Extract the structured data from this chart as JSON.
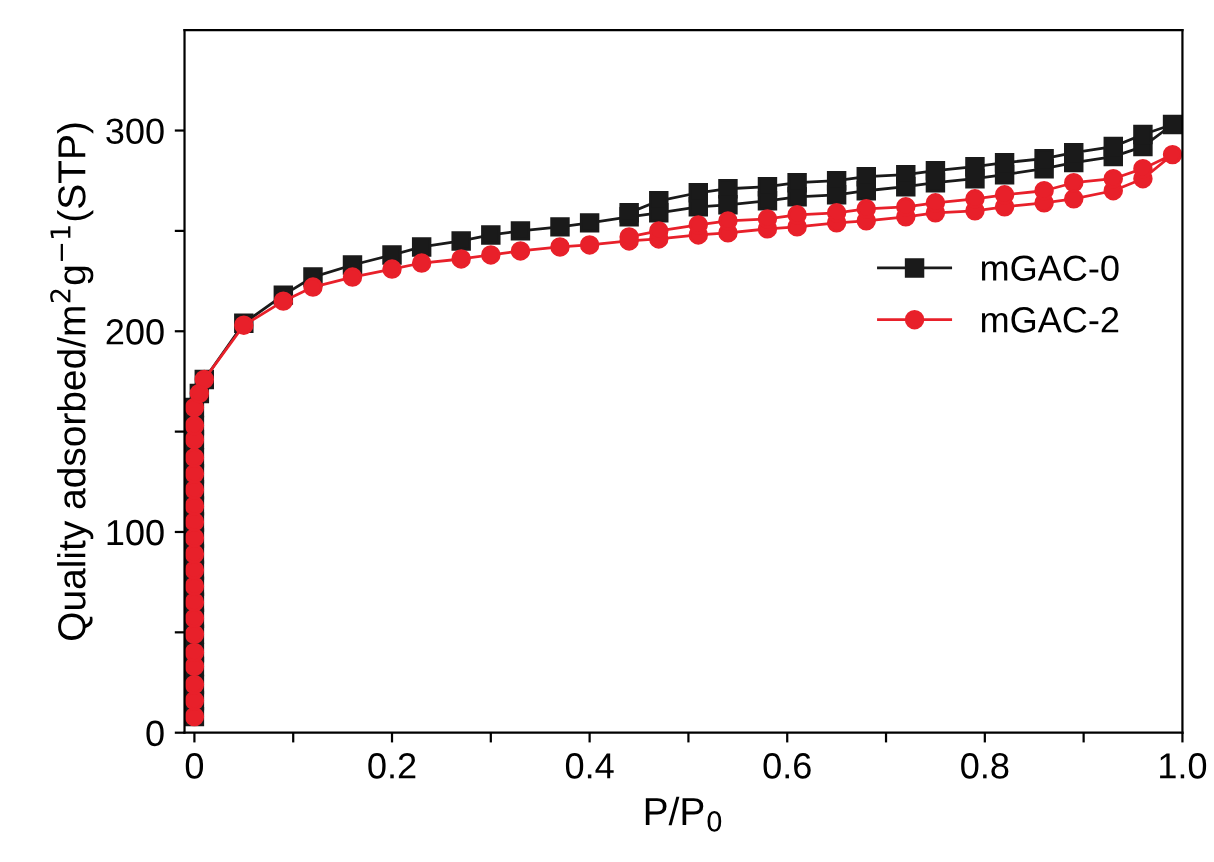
{
  "chart_data": {
    "type": "line",
    "xlabel": "P/P$_{0}$",
    "ylabel": "Quality adsorbed/m$^{2}$g$^{−1}$(STP)",
    "xlim": [
      -0.01,
      1.0
    ],
    "ylim": [
      0,
      350
    ],
    "xticks": [
      0,
      {
        "value": 0.1,
        "label": null
      },
      0.2,
      {
        "value": 0.3,
        "label": null
      },
      0.4,
      {
        "value": 0.5,
        "label": null
      },
      0.6,
      {
        "value": 0.7,
        "label": null
      },
      0.8,
      {
        "value": 0.9,
        "label": null
      },
      {
        "value": 1,
        "label": "1.0"
      }
    ],
    "yticks": [
      0,
      {
        "value": 50,
        "label": null
      },
      100,
      {
        "value": 150,
        "label": null
      },
      200,
      {
        "value": 250,
        "label": null
      },
      300
    ],
    "grid": false,
    "legend": "right",
    "line_style": "solid",
    "series": [
      {
        "name": "mGAC-0",
        "color": "#1a1a1a",
        "marker": "square",
        "x": [
          0,
          0,
          0,
          0,
          0,
          0,
          0,
          0,
          0,
          0,
          0,
          0,
          0,
          0,
          0,
          0,
          0,
          0,
          0,
          0,
          0.005,
          0.01,
          0.05,
          0.09,
          0.12,
          0.16,
          0.2,
          0.23,
          0.27,
          0.3,
          0.33,
          0.37,
          0.4,
          0.44,
          0.47,
          0.51,
          0.54,
          0.58,
          0.61,
          0.65,
          0.68,
          0.72,
          0.75,
          0.79,
          0.82,
          0.86,
          0.89,
          0.93,
          0.96,
          0.99,
          0.96,
          0.93,
          0.89,
          0.86,
          0.82,
          0.79,
          0.75,
          0.72,
          0.68,
          0.65,
          0.61,
          0.58,
          0.54,
          0.51,
          0.47,
          0.44
        ],
        "values": [
          8,
          16,
          24,
          33,
          40,
          49,
          57,
          65,
          73,
          81,
          89,
          97,
          105,
          113,
          121,
          129,
          137,
          146,
          153,
          162,
          169,
          176,
          204,
          218,
          227,
          233,
          238,
          242,
          245,
          248,
          250,
          252,
          254,
          257,
          259,
          262,
          263,
          265,
          267,
          268,
          270,
          272,
          274,
          276,
          278,
          281,
          284,
          287,
          292,
          303,
          298,
          292,
          289,
          286,
          284,
          282,
          280,
          278,
          277,
          275,
          274,
          272,
          271,
          269,
          265,
          259
        ]
      },
      {
        "name": "mGAC-2",
        "color": "#e8202a",
        "marker": "circle",
        "x": [
          0,
          0,
          0,
          0,
          0,
          0,
          0,
          0,
          0,
          0,
          0,
          0,
          0,
          0,
          0,
          0,
          0,
          0,
          0,
          0,
          0.005,
          0.01,
          0.05,
          0.09,
          0.12,
          0.16,
          0.2,
          0.23,
          0.27,
          0.3,
          0.33,
          0.37,
          0.4,
          0.44,
          0.47,
          0.51,
          0.54,
          0.58,
          0.61,
          0.65,
          0.68,
          0.72,
          0.75,
          0.79,
          0.82,
          0.86,
          0.89,
          0.93,
          0.96,
          0.99,
          0.96,
          0.93,
          0.89,
          0.86,
          0.82,
          0.79,
          0.75,
          0.72,
          0.68,
          0.65,
          0.61,
          0.58,
          0.54,
          0.51,
          0.47,
          0.44
        ],
        "values": [
          8,
          16,
          24,
          33,
          40,
          49,
          57,
          65,
          73,
          81,
          89,
          97,
          105,
          113,
          121,
          129,
          137,
          146,
          153,
          162,
          169,
          176,
          203,
          215,
          222,
          227,
          231,
          234,
          236,
          238,
          240,
          242,
          243,
          245,
          246,
          248,
          249,
          251,
          252,
          254,
          255,
          257,
          259,
          260,
          262,
          264,
          266,
          270,
          276,
          288,
          281,
          276,
          274,
          270,
          268,
          266,
          264,
          262,
          261,
          259,
          258,
          256,
          255,
          253,
          250,
          247
        ]
      }
    ]
  }
}
